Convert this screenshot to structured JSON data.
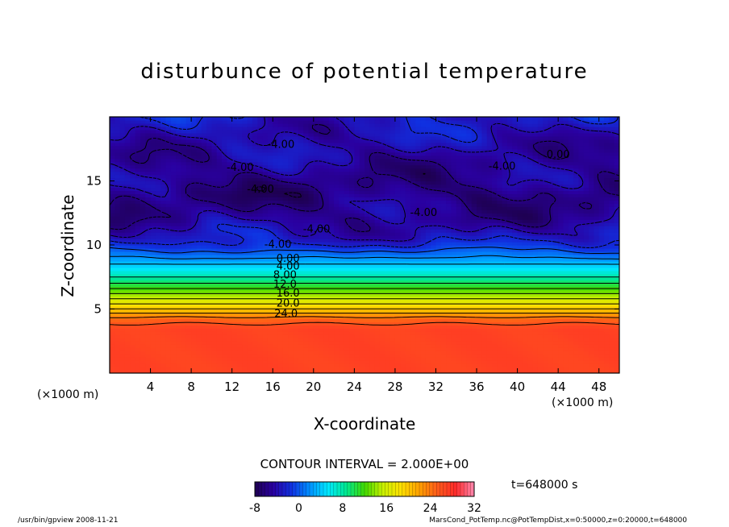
{
  "chart_data": {
    "type": "heatmap",
    "title": "disturbunce of potential temperature",
    "xlabel": "X-coordinate",
    "ylabel": "Z-coordinate",
    "x_unit": "(×1000 m)",
    "y_unit": "(×1000 m)",
    "xlim": [
      0,
      50
    ],
    "ylim": [
      0,
      20
    ],
    "x_ticks": [
      4,
      8,
      12,
      16,
      20,
      24,
      28,
      32,
      36,
      40,
      44,
      48
    ],
    "y_ticks": [
      5,
      10,
      15
    ],
    "colorbar": {
      "min": -8,
      "max": 32,
      "ticks": [
        -8,
        0,
        8,
        16,
        24,
        32
      ],
      "colors": [
        "#1e0050",
        "#2a00a0",
        "#1030e0",
        "#0090ff",
        "#00e8ff",
        "#00e890",
        "#40d800",
        "#c8f000",
        "#ffe000",
        "#ffa000",
        "#ff5a1a",
        "#ff2a2a",
        "#ff88b0"
      ]
    },
    "contour_interval": "CONTOUR INTERVAL = 2.000E+00",
    "contour_labels": [
      {
        "text": "-4.00",
        "x": 16.8,
        "z": 17.8
      },
      {
        "text": "-4.00",
        "x": 12.8,
        "z": 16.0
      },
      {
        "text": "-4.00",
        "x": 14.8,
        "z": 14.3
      },
      {
        "text": "-4.00",
        "x": 30.8,
        "z": 12.5
      },
      {
        "text": "-4.00",
        "x": 20.3,
        "z": 11.2
      },
      {
        "text": "0.00",
        "x": 44.0,
        "z": 17.0
      },
      {
        "text": "-4.00",
        "x": 38.5,
        "z": 16.1
      },
      {
        "text": "-4.00",
        "x": 16.5,
        "z": 10.0
      },
      {
        "text": "0.00",
        "x": 17.5,
        "z": 8.9
      },
      {
        "text": "4.00",
        "x": 17.5,
        "z": 8.3
      },
      {
        "text": "8.00",
        "x": 17.2,
        "z": 7.6
      },
      {
        "text": "12.0",
        "x": 17.2,
        "z": 6.9
      },
      {
        "text": "16.0",
        "x": 17.5,
        "z": 6.2
      },
      {
        "text": "20.0",
        "x": 17.5,
        "z": 5.4
      },
      {
        "text": "24.0",
        "x": 17.3,
        "z": 4.6
      }
    ],
    "profile": [
      {
        "z": 0,
        "theta": 27
      },
      {
        "z": 3.5,
        "theta": 27
      },
      {
        "z": 4.2,
        "theta": 25
      },
      {
        "z": 5.0,
        "theta": 20
      },
      {
        "z": 6.0,
        "theta": 15
      },
      {
        "z": 7.0,
        "theta": 10
      },
      {
        "z": 8.0,
        "theta": 6
      },
      {
        "z": 9.0,
        "theta": 2
      },
      {
        "z": 9.8,
        "theta": -1
      },
      {
        "z": 10.5,
        "theta": -3
      },
      {
        "z": 12,
        "theta": -5
      },
      {
        "z": 14,
        "theta": -6
      },
      {
        "z": 16,
        "theta": -5
      },
      {
        "z": 18,
        "theta": -4
      },
      {
        "z": 20,
        "theta": -3
      }
    ],
    "grid": false
  },
  "time_label": "t=648000 s",
  "footer_left": "/usr/bin/gpview   2008-11-21",
  "footer_right": "MarsCond_PotTemp.nc@PotTempDist,x=0:50000,z=0:20000,t=648000"
}
